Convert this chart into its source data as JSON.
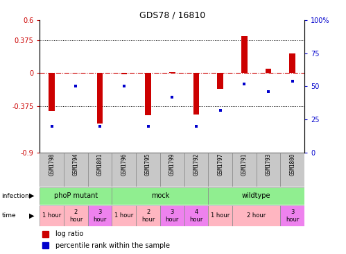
{
  "title": "GDS78 / 16810",
  "samples": [
    "GSM1798",
    "GSM1794",
    "GSM1801",
    "GSM1796",
    "GSM1795",
    "GSM1799",
    "GSM1792",
    "GSM1797",
    "GSM1791",
    "GSM1793",
    "GSM1800"
  ],
  "log_ratio": [
    -0.43,
    0.0,
    -0.57,
    -0.01,
    -0.48,
    0.01,
    -0.47,
    -0.18,
    0.42,
    0.05,
    0.22
  ],
  "percentile": [
    20,
    50,
    20,
    50,
    20,
    42,
    20,
    32,
    52,
    46,
    54
  ],
  "ylim_left": [
    -0.9,
    0.6
  ],
  "ylim_right": [
    0,
    100
  ],
  "yticks_left": [
    -0.9,
    -0.375,
    0.0,
    0.375,
    0.6
  ],
  "ytick_labels_left": [
    "-0.9",
    "-0.375",
    "0",
    "0.375",
    "0.6"
  ],
  "yticks_right": [
    0,
    25,
    50,
    75,
    100
  ],
  "ytick_labels_right": [
    "0",
    "25",
    "50",
    "75",
    "100%"
  ],
  "hlines": [
    0.375,
    -0.375
  ],
  "bar_color": "#CC0000",
  "dot_color": "#0000CC",
  "bg_color": "#FFFFFF",
  "axis_color_left": "#CC0000",
  "axis_color_right": "#0000CC",
  "infection_groups": [
    {
      "label": "phoP mutant",
      "start": 0,
      "end": 2,
      "color": "#90EE90"
    },
    {
      "label": "mock",
      "start": 3,
      "end": 6,
      "color": "#90EE90"
    },
    {
      "label": "wildtype",
      "start": 7,
      "end": 10,
      "color": "#90EE90"
    }
  ],
  "time_entries": [
    {
      "label": "1 hour",
      "start": 0,
      "end": 0,
      "color": "#FFB6C1"
    },
    {
      "label": "2\nhour",
      "start": 1,
      "end": 1,
      "color": "#FFB6C1"
    },
    {
      "label": "3\nhour",
      "start": 2,
      "end": 2,
      "color": "#EE82EE"
    },
    {
      "label": "1 hour",
      "start": 3,
      "end": 3,
      "color": "#FFB6C1"
    },
    {
      "label": "2\nhour",
      "start": 4,
      "end": 4,
      "color": "#FFB6C1"
    },
    {
      "label": "3\nhour",
      "start": 5,
      "end": 5,
      "color": "#EE82EE"
    },
    {
      "label": "4\nhour",
      "start": 6,
      "end": 6,
      "color": "#EE82EE"
    },
    {
      "label": "1 hour",
      "start": 7,
      "end": 7,
      "color": "#FFB6C1"
    },
    {
      "label": "2 hour",
      "start": 8,
      "end": 9,
      "color": "#FFB6C1"
    },
    {
      "label": "3\nhour",
      "start": 10,
      "end": 10,
      "color": "#EE82EE"
    }
  ],
  "legend_items": [
    {
      "label": "log ratio",
      "color": "#CC0000"
    },
    {
      "label": "percentile rank within the sample",
      "color": "#0000CC"
    }
  ]
}
